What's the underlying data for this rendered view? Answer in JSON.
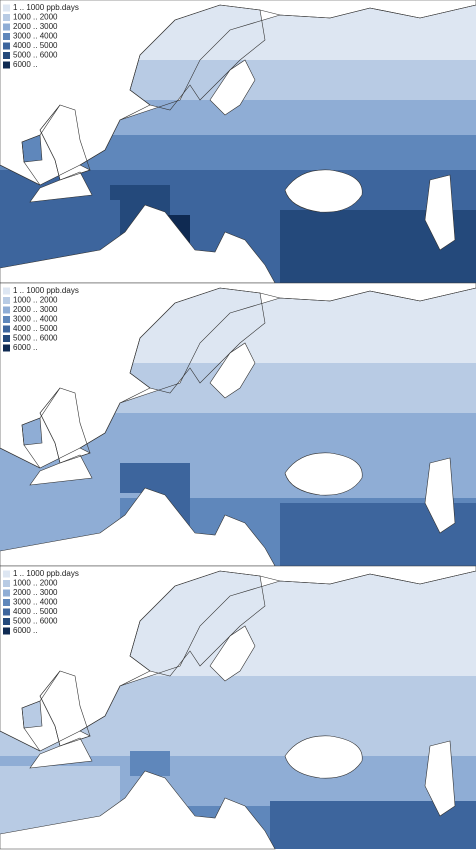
{
  "legend_colors": [
    "#dde6f2",
    "#b8cbe4",
    "#8fadd5",
    "#5f87bb",
    "#3d659d",
    "#24497b",
    "#0f2a52"
  ],
  "panels": [
    {
      "legend": [
        "1 .. 1000 ppb.days",
        "1000 .. 2000",
        "2000 .. 3000",
        "3000 .. 4000",
        "4000 .. 5000",
        "5000 .. 6000",
        "6000 .."
      ]
    },
    {
      "legend": [
        "1 .. 1000 ppb.days",
        "1000 .. 2000",
        "2000 .. 3000",
        "3000 .. 4000",
        "4000 .. 5000",
        "5000 .. 6000",
        "6000 .."
      ]
    },
    {
      "legend": [
        "1 .. 1000 ppb.days",
        "1000 .. 2000",
        "2000 .. 3000",
        "3000 .. 4000",
        "4000 .. 5000",
        "5000 .. 6000",
        "6000 .."
      ]
    }
  ]
}
